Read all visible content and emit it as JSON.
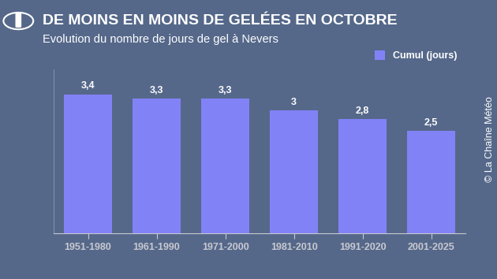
{
  "chart_data": {
    "type": "bar",
    "title": "DE MOINS EN MOINS DE GELÉES EN OCTOBRE",
    "subtitle": "Evolution du nombre de jours de gel à Nevers",
    "credit": "© La Chaîne Météo",
    "categories": [
      "1951-1980",
      "1961-1990",
      "1971-2000",
      "1981-2010",
      "1991-2020",
      "2001-2025"
    ],
    "series": [
      {
        "name": "Cumul (jours)",
        "color": "#8282f7",
        "values": [
          3.4,
          3.3,
          3.3,
          3.0,
          2.8,
          2.5
        ],
        "value_labels": [
          "3,4",
          "3,3",
          "3,3",
          "3",
          "2,8",
          "2,5"
        ]
      }
    ],
    "ylim": [
      0,
      4
    ],
    "yticks": [],
    "data_labels": true,
    "tick_labels": "x",
    "legend": "upper right",
    "grid": false
  }
}
